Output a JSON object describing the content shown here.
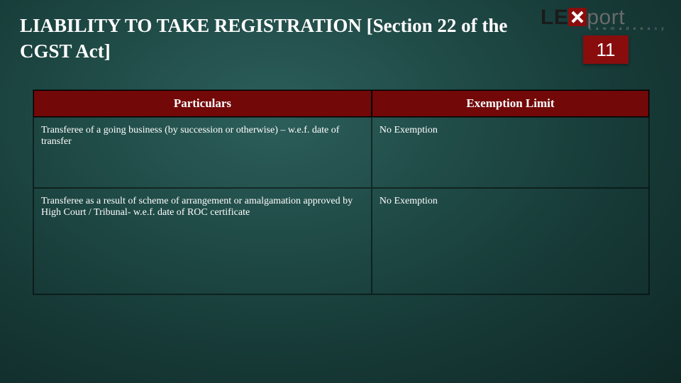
{
  "title": "LIABILITY  TO TAKE REGISTRATION [Section 22 of the CGST Act]",
  "logo": {
    "prefix": "LE",
    "suffix": "port",
    "tagline": "L a w   m a d e   e a s y"
  },
  "page_number": "11",
  "table": {
    "columns": [
      "Particulars",
      "Exemption Limit"
    ],
    "rows": [
      [
        "Transferee of a going business (by succession or otherwise) – w.e.f. date of transfer",
        "No Exemption"
      ],
      [
        "Transferee as a result of scheme of arrangement or amalgamation approved by High Court / Tribunal- w.e.f. date of ROC certificate",
        "No Exemption"
      ]
    ]
  },
  "colors": {
    "header_bg": "#720808",
    "badge_bg": "#8a0d0d",
    "text": "#ffffff",
    "border": "#000000"
  }
}
